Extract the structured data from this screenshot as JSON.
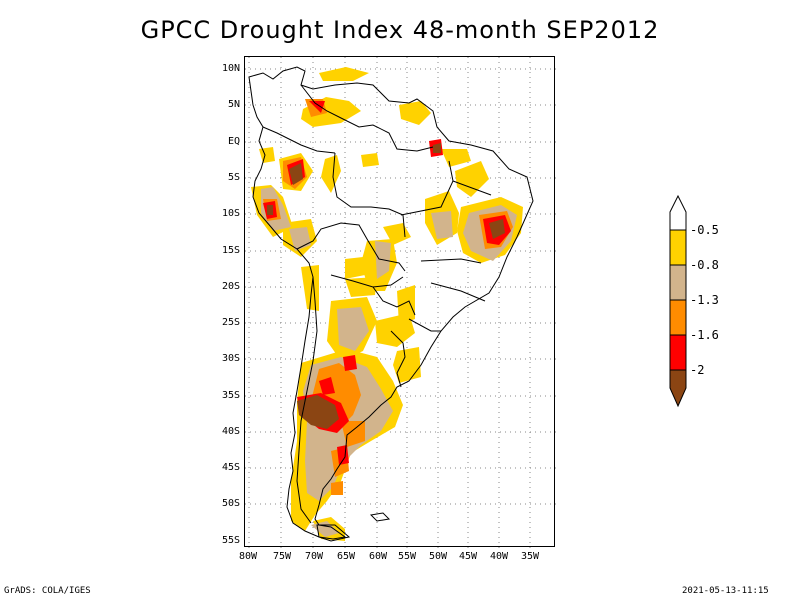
{
  "title": "GPCC Drought Index 48-month SEP2012",
  "lat_labels": [
    "10N",
    "5N",
    "EQ",
    "5S",
    "10S",
    "15S",
    "20S",
    "25S",
    "30S",
    "35S",
    "40S",
    "45S",
    "50S",
    "55S"
  ],
  "lon_labels": [
    "80W",
    "75W",
    "70W",
    "65W",
    "60W",
    "55W",
    "50W",
    "45W",
    "40W",
    "35W"
  ],
  "legend": {
    "labels": [
      "-0.5",
      "-0.8",
      "-1.3",
      "-1.6",
      "-2"
    ],
    "colors": [
      "#ffffff",
      "#ffd200",
      "#d2b48c",
      "#ff8c00",
      "#ff0000",
      "#8b4513"
    ]
  },
  "footer": {
    "left": "GrADS: COLA/IGES",
    "right": "2021-05-13-11:15"
  }
}
